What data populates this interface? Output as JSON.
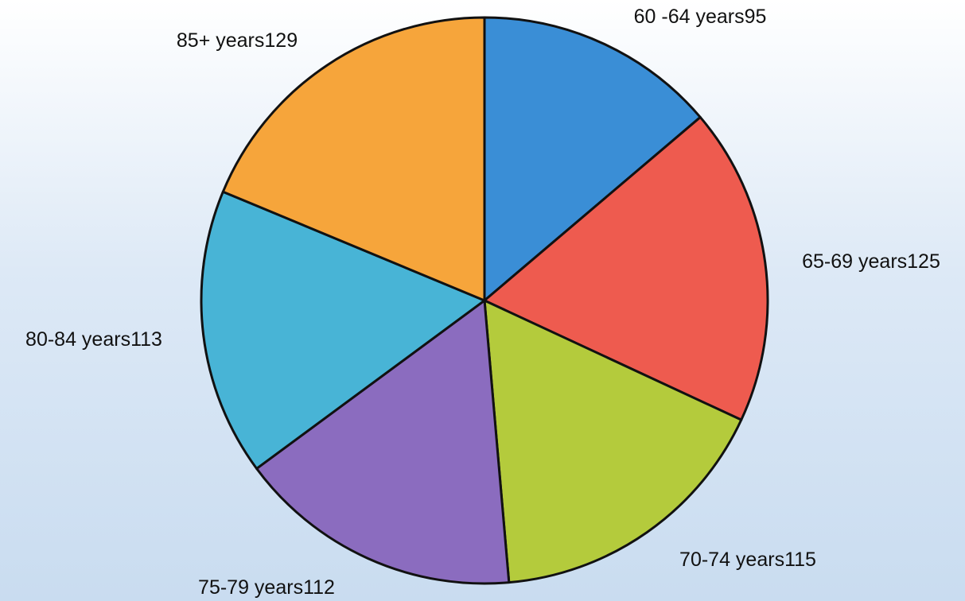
{
  "chart_data": {
    "type": "pie",
    "categories": [
      "60 -64 years",
      "65-69 years",
      "70-74 years",
      "75-79 years",
      "80-84 years",
      "85+ years"
    ],
    "values": [
      95,
      125,
      115,
      112,
      113,
      129
    ],
    "colors": [
      "#3a8ed6",
      "#ee5b4f",
      "#b4cb3c",
      "#8b6cbf",
      "#48b4d6",
      "#f6a53b"
    ]
  }
}
